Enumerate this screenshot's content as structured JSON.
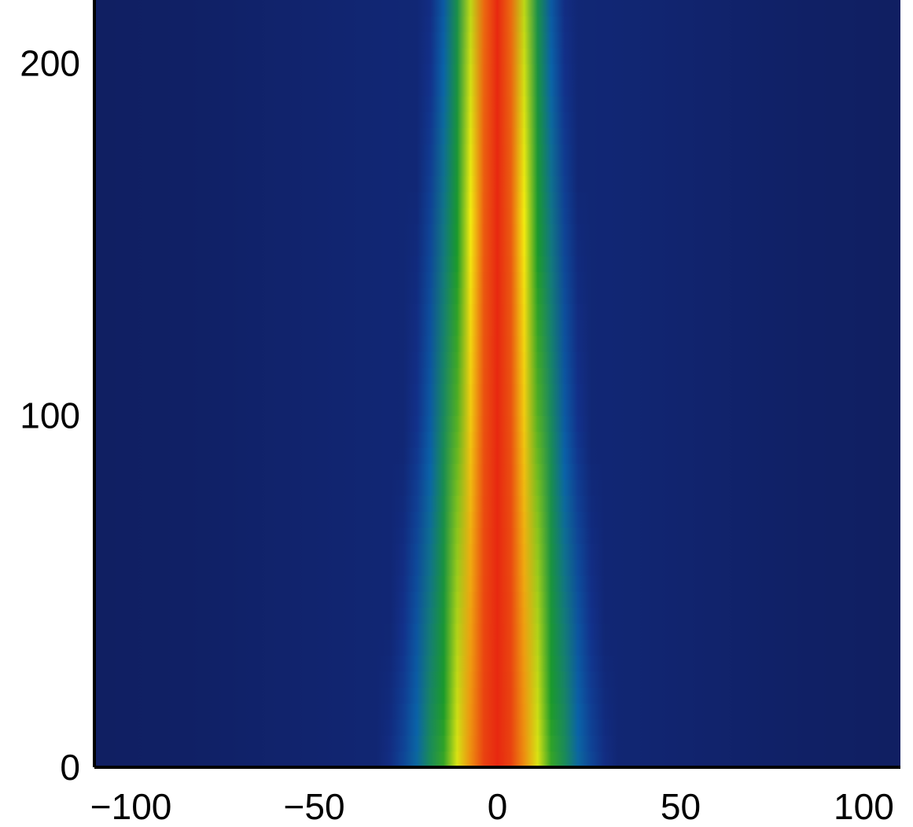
{
  "chart_data": {
    "type": "heatmap",
    "title": "",
    "xlabel": "",
    "ylabel": "",
    "xlim": [
      -110,
      110
    ],
    "ylim": [
      0,
      218
    ],
    "x_ticks": [
      {
        "value": -100,
        "label": "−100"
      },
      {
        "value": -50,
        "label": "−50"
      },
      {
        "value": 0,
        "label": "0"
      },
      {
        "value": 50,
        "label": "50"
      },
      {
        "value": 100,
        "label": "100"
      }
    ],
    "y_ticks": [
      {
        "value": 0,
        "label": "0"
      },
      {
        "value": 100,
        "label": "100"
      },
      {
        "value": 200,
        "label": "200"
      }
    ],
    "colormap": [
      "#0a0f1e",
      "#101e60",
      "#12308a",
      "#0a63a8",
      "#1a8a5a",
      "#1a9a2a",
      "#f2ec10",
      "#e82810"
    ],
    "band_center_x": 0,
    "color_band_half_widths": [
      {
        "y": 0,
        "red": 9,
        "yellow": 17,
        "green": 36,
        "light_blue": 45
      },
      {
        "y": 100,
        "red": 5,
        "yellow": 11,
        "green": 27,
        "light_blue": 35
      },
      {
        "y": 218,
        "red": 3,
        "yellow": 8,
        "green": 20,
        "light_blue": 28
      }
    ],
    "grid": false,
    "legend": "none"
  }
}
